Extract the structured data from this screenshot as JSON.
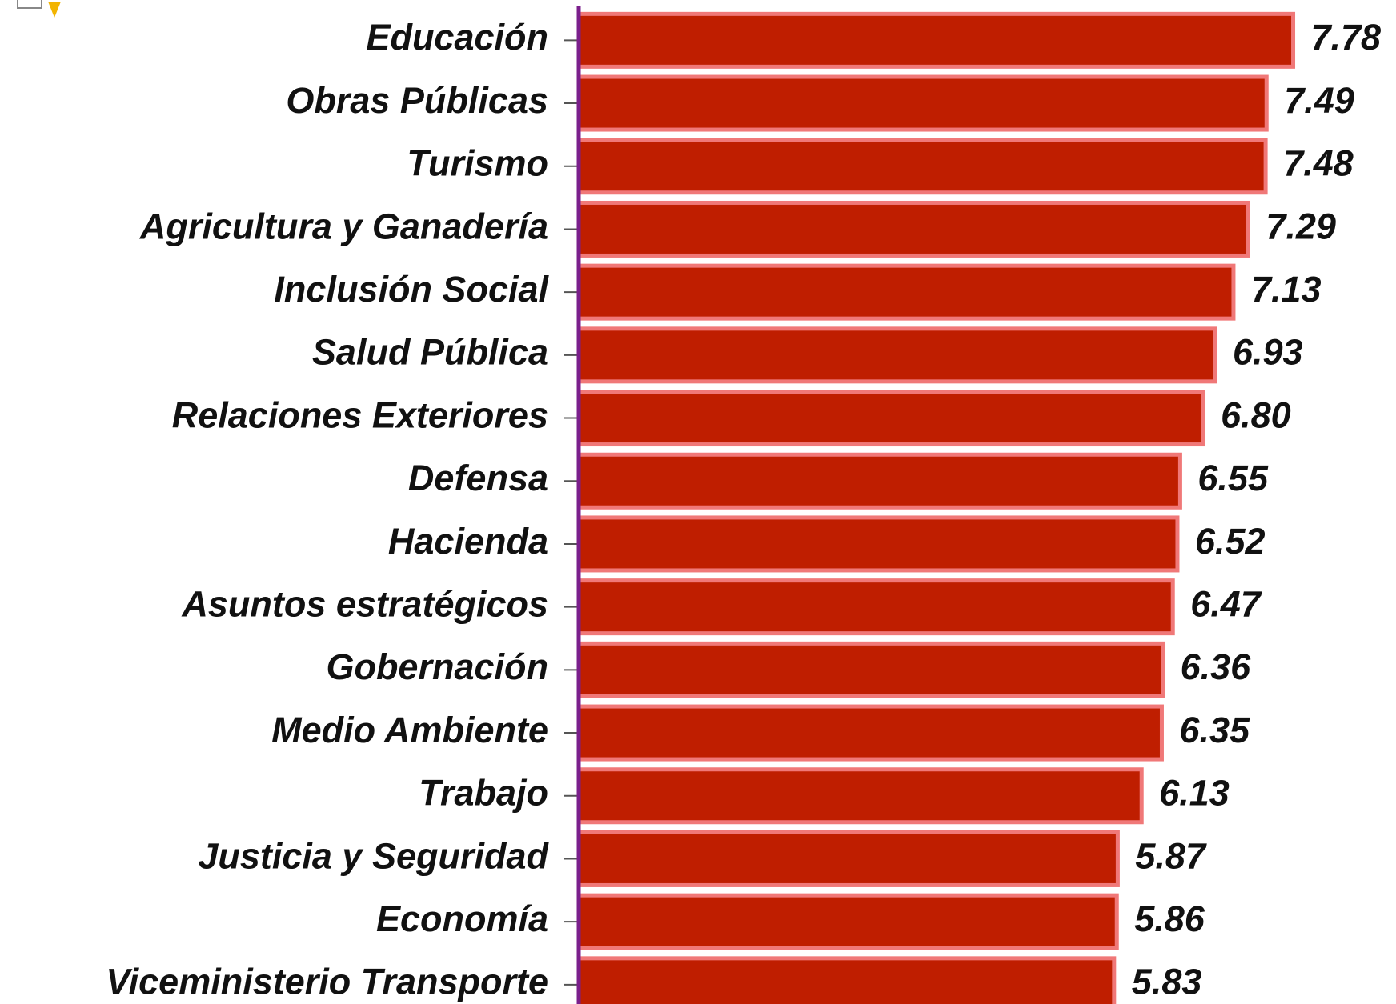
{
  "chart_data": {
    "type": "barh",
    "categories": [
      "Educación",
      "Obras Públicas",
      "Turismo",
      "Agricultura y Ganadería",
      "Inclusión Social",
      "Salud Pública",
      "Relaciones Exteriores",
      "Defensa",
      "Hacienda",
      "Asuntos estratégicos",
      "Gobernación",
      "Medio Ambiente",
      "Trabajo",
      "Justicia y Seguridad",
      "Economía",
      "Viceministerio  Transporte"
    ],
    "values": [
      7.78,
      7.49,
      7.48,
      7.29,
      7.13,
      6.93,
      6.8,
      6.55,
      6.52,
      6.47,
      6.36,
      6.35,
      6.13,
      5.87,
      5.86,
      5.83
    ],
    "value_labels": [
      "7.78",
      "7.49",
      "7.48",
      "7.29",
      "7.13",
      "6.93",
      "6.80",
      "6.55",
      "6.52",
      "6.47",
      "6.36",
      "6.35",
      "6.13",
      "5.87",
      "5.86",
      "5.83"
    ],
    "color": "#bf1e00",
    "edge_color": "#f07878",
    "axis_color": "#7b1f8c",
    "xlim": [
      0,
      8.9
    ]
  }
}
